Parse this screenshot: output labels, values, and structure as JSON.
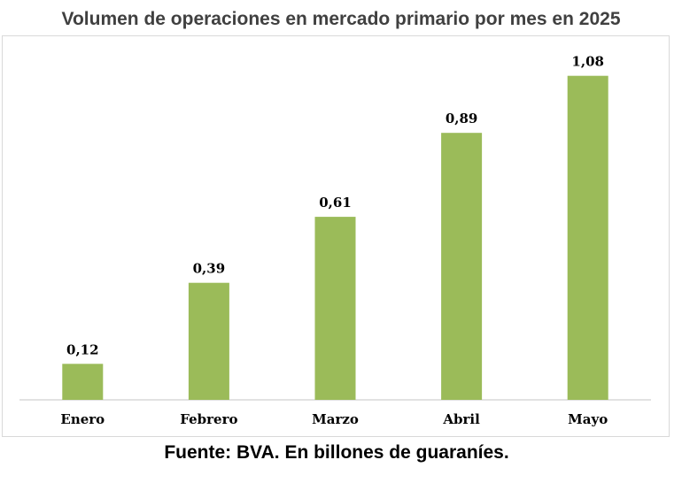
{
  "chart_data": {
    "type": "bar",
    "title": "Volumen de operaciones en mercado primario por mes en 2025",
    "categories": [
      "Enero",
      "Febrero",
      "Marzo",
      "Abril",
      "Mayo"
    ],
    "values": [
      0.12,
      0.39,
      0.61,
      0.89,
      1.08
    ],
    "data_labels": [
      "0,12",
      "0,39",
      "0,61",
      "0,89",
      "1,08"
    ],
    "xlabel": "",
    "ylabel": "",
    "ylim": [
      0,
      1.15
    ],
    "grid": false,
    "legend": "none",
    "bar_color": "#9bbb59",
    "axis_color": "#d9d9d9"
  },
  "footer": {
    "source": "Fuente: BVA. En billones de guaraníes."
  }
}
